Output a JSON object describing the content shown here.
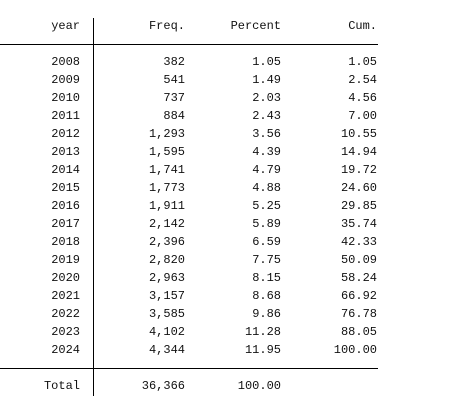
{
  "table": {
    "header": [
      "year",
      "Freq.",
      "Percent",
      "Cum."
    ],
    "rows": [
      [
        "2008",
        "382",
        "1.05",
        "1.05"
      ],
      [
        "2009",
        "541",
        "1.49",
        "2.54"
      ],
      [
        "2010",
        "737",
        "2.03",
        "4.56"
      ],
      [
        "2011",
        "884",
        "2.43",
        "7.00"
      ],
      [
        "2012",
        "1,293",
        "3.56",
        "10.55"
      ],
      [
        "2013",
        "1,595",
        "4.39",
        "14.94"
      ],
      [
        "2014",
        "1,741",
        "4.79",
        "19.72"
      ],
      [
        "2015",
        "1,773",
        "4.88",
        "24.60"
      ],
      [
        "2016",
        "1,911",
        "5.25",
        "29.85"
      ],
      [
        "2017",
        "2,142",
        "5.89",
        "35.74"
      ],
      [
        "2018",
        "2,396",
        "6.59",
        "42.33"
      ],
      [
        "2019",
        "2,820",
        "7.75",
        "50.09"
      ],
      [
        "2020",
        "2,963",
        "8.15",
        "58.24"
      ],
      [
        "2021",
        "3,157",
        "8.68",
        "66.92"
      ],
      [
        "2022",
        "3,585",
        "9.86",
        "76.78"
      ],
      [
        "2023",
        "4,102",
        "11.28",
        "88.05"
      ],
      [
        "2024",
        "4,344",
        "11.95",
        "100.00"
      ]
    ],
    "total": [
      "Total",
      "36,366",
      "100.00"
    ]
  }
}
